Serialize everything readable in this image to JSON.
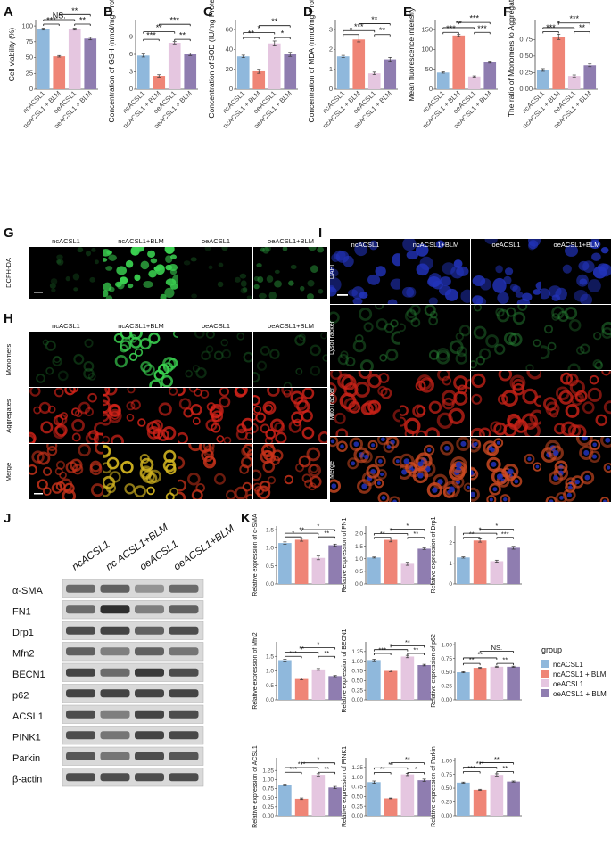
{
  "colors": {
    "nc": "#8fb8dc",
    "ncB": "#ef8576",
    "oe": "#e5c6e0",
    "oeB": "#8f7db0",
    "dapi": "#1a2a8a",
    "green": "#2bb040",
    "red": "#d8241a",
    "axis": "#444444"
  },
  "legend": {
    "title": "group",
    "entries": [
      "ncACSL1",
      "ncACSL1 + BLM",
      "oeACSL1",
      "oeACSL1 + BLM"
    ]
  },
  "chart_data": [
    {
      "panel": "A",
      "type": "bar",
      "categories": [
        "ncACSL1",
        "ncACSL1 + BLM",
        "oeACSL1",
        "oeACSL1 + BLM"
      ],
      "values": [
        95,
        52,
        95,
        80
      ],
      "errors": [
        1.5,
        1.2,
        1.5,
        2
      ],
      "ylabel": "Cell viability (%)",
      "ylim": [
        0,
        110
      ],
      "ticks": [
        "0",
        "25",
        "50",
        "75",
        "100"
      ],
      "tickvals": [
        0,
        25,
        50,
        75,
        100
      ],
      "sig": [
        {
          "a": 0,
          "b": 1,
          "y": 103,
          "label": "***"
        },
        {
          "a": 0,
          "b": 2,
          "y": 110,
          "label": "NS."
        },
        {
          "a": 1,
          "b": 3,
          "y": 118,
          "label": "**"
        },
        {
          "a": 2,
          "b": 3,
          "y": 103,
          "label": "**"
        }
      ]
    },
    {
      "panel": "B",
      "type": "bar",
      "categories": [
        "ncACSL1",
        "ncACSL1 + BLM",
        "oeACSL1",
        "oeACSL1 + BLM"
      ],
      "values": [
        5.8,
        2.3,
        8.0,
        6.0
      ],
      "errors": [
        0.25,
        0.2,
        0.2,
        0.2
      ],
      "ylabel": "Concentration of GSH (nmol/mg Protein)",
      "ylim": [
        0,
        12
      ],
      "ticks": [
        "0",
        "3",
        "6",
        "9"
      ],
      "tickvals": [
        0,
        3,
        6,
        9
      ],
      "sig": [
        {
          "a": 0,
          "b": 1,
          "y": 8.6,
          "label": "***"
        },
        {
          "a": 0,
          "b": 2,
          "y": 9.9,
          "label": "**"
        },
        {
          "a": 1,
          "b": 3,
          "y": 11.2,
          "label": "***"
        },
        {
          "a": 2,
          "b": 3,
          "y": 8.6,
          "label": "**"
        }
      ]
    },
    {
      "panel": "C",
      "type": "bar",
      "categories": [
        "ncACSL1",
        "ncACSL1 + BLM",
        "oeACSL1",
        "oeACSL1 + BLM"
      ],
      "values": [
        33,
        18,
        46,
        35
      ],
      "errors": [
        1.2,
        2,
        2.5,
        2
      ],
      "ylabel": "Concentration of SOD (IU/mg Protein)",
      "ylim": [
        0,
        70
      ],
      "ticks": [
        "0",
        "20",
        "40",
        "60"
      ],
      "tickvals": [
        0,
        20,
        40,
        60
      ],
      "sig": [
        {
          "a": 0,
          "b": 1,
          "y": 52,
          "label": "**"
        },
        {
          "a": 0,
          "b": 2,
          "y": 57,
          "label": "*"
        },
        {
          "a": 1,
          "b": 3,
          "y": 64,
          "label": "**"
        },
        {
          "a": 2,
          "b": 3,
          "y": 52,
          "label": "*"
        }
      ]
    },
    {
      "panel": "D",
      "type": "bar",
      "categories": [
        "ncACSL1",
        "ncACSL1 + BLM",
        "oeACSL1",
        "oeACSL1 + BLM"
      ],
      "values": [
        1.65,
        2.5,
        0.8,
        1.5
      ],
      "errors": [
        0.05,
        0.12,
        0.06,
        0.1
      ],
      "ylabel": "Concentration of MDA (nmol/mg Protein)",
      "ylim": [
        0,
        3.5
      ],
      "ticks": [
        "0",
        "1",
        "2",
        "3"
      ],
      "tickvals": [
        0,
        1,
        2,
        3
      ],
      "sig": [
        {
          "a": 0,
          "b": 1,
          "y": 2.75,
          "label": "*"
        },
        {
          "a": 0,
          "b": 2,
          "y": 2.95,
          "label": "***"
        },
        {
          "a": 1,
          "b": 3,
          "y": 3.3,
          "label": "**"
        },
        {
          "a": 2,
          "b": 3,
          "y": 2.75,
          "label": "**"
        }
      ]
    },
    {
      "panel": "E",
      "type": "bar",
      "categories": [
        "ncACSL1",
        "ncACSL1 + BLM",
        "oeACSL1",
        "oeACSL1 + BLM"
      ],
      "values": [
        42,
        135,
        32,
        68
      ],
      "errors": [
        1.5,
        2.5,
        1.5,
        2.5
      ],
      "ylabel": "Mean fluorescence intensity",
      "ylim": [
        0,
        175
      ],
      "ticks": [
        "0",
        "50",
        "100",
        "150"
      ],
      "tickvals": [
        0,
        50,
        100,
        150
      ],
      "sig": [
        {
          "a": 0,
          "b": 1,
          "y": 143,
          "label": "***"
        },
        {
          "a": 0,
          "b": 2,
          "y": 155,
          "label": "**"
        },
        {
          "a": 1,
          "b": 3,
          "y": 168,
          "label": "***"
        },
        {
          "a": 2,
          "b": 3,
          "y": 143,
          "label": "***"
        }
      ]
    },
    {
      "panel": "F",
      "type": "bar",
      "categories": [
        "ncACSL1",
        "ncACSL1 + BLM",
        "oeACSL1",
        "oeACSL1 + BLM"
      ],
      "values": [
        0.29,
        0.79,
        0.2,
        0.36
      ],
      "errors": [
        0.02,
        0.04,
        0.015,
        0.02
      ],
      "ylabel": "The ratio of Monomers to Aggregates",
      "ylim": [
        0,
        1.05
      ],
      "ticks": [
        "0.00",
        "0.25",
        "0.50",
        "0.75"
      ],
      "tickvals": [
        0,
        0.25,
        0.5,
        0.75
      ],
      "sig": [
        {
          "a": 0,
          "b": 1,
          "y": 0.87,
          "label": "***"
        },
        {
          "a": 0,
          "b": 2,
          "y": 0.93,
          "label": "*"
        },
        {
          "a": 1,
          "b": 3,
          "y": 1.0,
          "label": "***"
        },
        {
          "a": 2,
          "b": 3,
          "y": 0.87,
          "label": "**"
        }
      ]
    },
    {
      "panel": "K1",
      "type": "bar",
      "categories": [
        "ncACSL1",
        "ncACSL1 + BLM",
        "oeACSL1",
        "oeACSL1 + BLM"
      ],
      "values": [
        1.13,
        1.22,
        0.72,
        1.07
      ],
      "errors": [
        0.03,
        0.04,
        0.05,
        0.03
      ],
      "ylabel": "Relative expression of α-SMA",
      "ylim": [
        0,
        1.6
      ],
      "ticks": [
        "0.0",
        "0.5",
        "1.0",
        "1.5"
      ],
      "tickvals": [
        0,
        0.5,
        1,
        1.5
      ],
      "sig": [
        {
          "a": 0,
          "b": 1,
          "y": 1.3,
          "label": "*"
        },
        {
          "a": 0,
          "b": 2,
          "y": 1.4,
          "label": "**"
        },
        {
          "a": 1,
          "b": 3,
          "y": 1.5,
          "label": "*"
        },
        {
          "a": 2,
          "b": 3,
          "y": 1.3,
          "label": "**"
        }
      ]
    },
    {
      "panel": "K2",
      "type": "bar",
      "categories": [
        "ncACSL1",
        "ncACSL1 + BLM",
        "oeACSL1",
        "oeACSL1 + BLM"
      ],
      "values": [
        1.05,
        1.75,
        0.8,
        1.4
      ],
      "errors": [
        0.02,
        0.08,
        0.06,
        0.03
      ],
      "ylabel": "Relative expression of FN1",
      "ylim": [
        0,
        2.3
      ],
      "ticks": [
        "0.0",
        "0.5",
        "1.0",
        "1.5",
        "2.0"
      ],
      "tickvals": [
        0,
        0.5,
        1,
        1.5,
        2
      ],
      "sig": [
        {
          "a": 0,
          "b": 1,
          "y": 1.85,
          "label": "**"
        },
        {
          "a": 0,
          "b": 2,
          "y": 2.0,
          "label": "*"
        },
        {
          "a": 1,
          "b": 3,
          "y": 2.18,
          "label": "*"
        },
        {
          "a": 2,
          "b": 3,
          "y": 1.85,
          "label": "**"
        }
      ]
    },
    {
      "panel": "K3",
      "type": "bar",
      "categories": [
        "ncACSL1",
        "ncACSL1 + BLM",
        "oeACSL1",
        "oeACSL1 + BLM"
      ],
      "values": [
        1.28,
        2.1,
        1.1,
        1.75
      ],
      "errors": [
        0.03,
        0.08,
        0.05,
        0.07
      ],
      "ylabel": "Relative expression of Drp1",
      "ylim": [
        0,
        2.8
      ],
      "ticks": [
        "0",
        "1",
        "2"
      ],
      "tickvals": [
        0,
        1,
        2
      ],
      "sig": [
        {
          "a": 0,
          "b": 1,
          "y": 2.25,
          "label": "**"
        },
        {
          "a": 0,
          "b": 2,
          "y": 2.45,
          "label": "*"
        },
        {
          "a": 1,
          "b": 3,
          "y": 2.65,
          "label": "*"
        },
        {
          "a": 2,
          "b": 3,
          "y": 2.25,
          "label": "***"
        }
      ]
    },
    {
      "panel": "K4",
      "type": "bar",
      "categories": [
        "ncACSL1",
        "ncACSL1 + BLM",
        "oeACSL1",
        "oeACSL1 + BLM"
      ],
      "values": [
        1.37,
        0.72,
        1.05,
        0.82
      ],
      "errors": [
        0.03,
        0.03,
        0.03,
        0.02
      ],
      "ylabel": "Relative expression of Mfn2",
      "ylim": [
        0,
        2.0
      ],
      "ticks": [
        "0.0",
        "0.5",
        "1.0",
        "1.5"
      ],
      "tickvals": [
        0,
        0.5,
        1,
        1.5
      ],
      "sig": [
        {
          "a": 0,
          "b": 1,
          "y": 1.5,
          "label": "***"
        },
        {
          "a": 0,
          "b": 2,
          "y": 1.65,
          "label": "**"
        },
        {
          "a": 1,
          "b": 3,
          "y": 1.8,
          "label": "*"
        },
        {
          "a": 2,
          "b": 3,
          "y": 1.5,
          "label": "**"
        }
      ]
    },
    {
      "panel": "K5",
      "type": "bar",
      "categories": [
        "ncACSL1",
        "ncACSL1 + BLM",
        "oeACSL1",
        "oeACSL1 + BLM"
      ],
      "values": [
        1.03,
        0.75,
        1.12,
        0.9
      ],
      "errors": [
        0.02,
        0.02,
        0.03,
        0.02
      ],
      "ylabel": "Relative expression of BECN1",
      "ylim": [
        0,
        1.5
      ],
      "ticks": [
        "0.00",
        "0.25",
        "0.50",
        "0.75",
        "1.00",
        "1.25"
      ],
      "tickvals": [
        0,
        0.25,
        0.5,
        0.75,
        1,
        1.25
      ],
      "sig": [
        {
          "a": 0,
          "b": 1,
          "y": 1.2,
          "label": "***"
        },
        {
          "a": 0,
          "b": 2,
          "y": 1.3,
          "label": "*"
        },
        {
          "a": 1,
          "b": 3,
          "y": 1.4,
          "label": "**"
        },
        {
          "a": 2,
          "b": 3,
          "y": 1.2,
          "label": "**"
        }
      ]
    },
    {
      "panel": "K6",
      "type": "bar",
      "categories": [
        "ncACSL1",
        "ncACSL1 + BLM",
        "oeACSL1",
        "oeACSL1 + BLM"
      ],
      "values": [
        0.5,
        0.58,
        0.6,
        0.6
      ],
      "errors": [
        0.01,
        0.01,
        0.01,
        0.01
      ],
      "ylabel": "Relative expression of p62",
      "ylim": [
        0,
        1.05
      ],
      "ticks": [
        "0.00",
        "0.25",
        "0.50",
        "0.75",
        "1.00"
      ],
      "tickvals": [
        0,
        0.25,
        0.5,
        0.75,
        1
      ],
      "sig": [
        {
          "a": 0,
          "b": 1,
          "y": 0.66,
          "label": "**"
        },
        {
          "a": 0,
          "b": 2,
          "y": 0.76,
          "label": "**"
        },
        {
          "a": 1,
          "b": 3,
          "y": 0.88,
          "label": "NS."
        },
        {
          "a": 2,
          "b": 3,
          "y": 0.66,
          "label": "**"
        }
      ]
    },
    {
      "panel": "K7",
      "type": "bar",
      "categories": [
        "ncACSL1",
        "ncACSL1 + BLM",
        "oeACSL1",
        "oeACSL1 + BLM"
      ],
      "values": [
        0.85,
        0.47,
        1.13,
        0.78
      ],
      "errors": [
        0.02,
        0.02,
        0.03,
        0.03
      ],
      "ylabel": "Relative expression of ACSL1",
      "ylim": [
        0,
        1.6
      ],
      "ticks": [
        "0.00",
        "0.25",
        "0.50",
        "0.75",
        "1.00",
        "1.25"
      ],
      "tickvals": [
        0,
        0.25,
        0.5,
        0.75,
        1,
        1.25
      ],
      "sig": [
        {
          "a": 0,
          "b": 1,
          "y": 1.2,
          "label": "***"
        },
        {
          "a": 0,
          "b": 2,
          "y": 1.33,
          "label": "***"
        },
        {
          "a": 1,
          "b": 3,
          "y": 1.46,
          "label": "*"
        },
        {
          "a": 2,
          "b": 3,
          "y": 1.2,
          "label": "**"
        }
      ]
    },
    {
      "panel": "K8",
      "type": "bar",
      "categories": [
        "ncACSL1",
        "ncACSL1 + BLM",
        "oeACSL1",
        "oeACSL1 + BLM"
      ],
      "values": [
        0.87,
        0.45,
        1.07,
        0.92
      ],
      "errors": [
        0.03,
        0.01,
        0.03,
        0.03
      ],
      "ylabel": "Relative expression of PINK1",
      "ylim": [
        0,
        1.5
      ],
      "ticks": [
        "0.00",
        "0.25",
        "0.50",
        "0.75",
        "1.00",
        "1.25"
      ],
      "tickvals": [
        0,
        0.25,
        0.5,
        0.75,
        1,
        1.25
      ],
      "sig": [
        {
          "a": 0,
          "b": 1,
          "y": 1.12,
          "label": "**"
        },
        {
          "a": 0,
          "b": 2,
          "y": 1.24,
          "label": "**"
        },
        {
          "a": 1,
          "b": 3,
          "y": 1.37,
          "label": "**"
        },
        {
          "a": 2,
          "b": 3,
          "y": 1.12,
          "label": "*"
        }
      ]
    },
    {
      "panel": "K9",
      "type": "bar",
      "categories": [
        "ncACSL1",
        "ncACSL1 + BLM",
        "oeACSL1",
        "oeACSL1 + BLM"
      ],
      "values": [
        0.6,
        0.47,
        0.74,
        0.62
      ],
      "errors": [
        0.01,
        0.01,
        0.02,
        0.01
      ],
      "ylabel": "Relative expression of Parkin",
      "ylim": [
        0,
        1.05
      ],
      "ticks": [
        "0.00",
        "0.25",
        "0.50",
        "0.75",
        "1.00"
      ],
      "tickvals": [
        0,
        0.25,
        0.5,
        0.75,
        1
      ],
      "sig": [
        {
          "a": 0,
          "b": 1,
          "y": 0.8,
          "label": "***"
        },
        {
          "a": 0,
          "b": 2,
          "y": 0.88,
          "label": "***"
        },
        {
          "a": 1,
          "b": 3,
          "y": 0.96,
          "label": "**"
        },
        {
          "a": 2,
          "b": 3,
          "y": 0.8,
          "label": "**"
        }
      ]
    }
  ],
  "panel_letters": [
    "A",
    "B",
    "C",
    "D",
    "E",
    "F",
    "G",
    "H",
    "I",
    "J",
    "K"
  ],
  "panel_G": {
    "columns": [
      "ncACSL1",
      "ncACSL1+BLM",
      "oeACSL1",
      "oeACSL1+BLM"
    ],
    "rows": [
      "DCFH-DA"
    ]
  },
  "panel_H": {
    "columns": [
      "ncACSL1",
      "ncACSL1+BLM",
      "oeACSL1",
      "oeACSL1+BLM"
    ],
    "rows": [
      "Monomers",
      "Aggregates",
      "Merge"
    ]
  },
  "panel_I": {
    "columns": [
      "ncACSL1",
      "ncACSL1+BLM",
      "oeACSL1",
      "oeACSL1+BLM"
    ],
    "rows": [
      "DAPI",
      "LysoTracker",
      "MitoTracker",
      "Merge"
    ]
  },
  "panel_J": {
    "columns": [
      "ncACSL1",
      "nc ACSL1+BLM",
      "oeACSL1",
      "oeACSL1+BLM"
    ],
    "proteins": [
      "α-SMA",
      "FN1",
      "Drp1",
      "Mfn2",
      "BECN1",
      "p62",
      "ACSL1",
      "PINK1",
      "Parkin",
      "β-actin"
    ],
    "band_intensity": [
      [
        0.55,
        0.6,
        0.35,
        0.55
      ],
      [
        0.55,
        0.85,
        0.45,
        0.6
      ],
      [
        0.7,
        0.75,
        0.6,
        0.7
      ],
      [
        0.6,
        0.45,
        0.6,
        0.5
      ],
      [
        0.75,
        0.55,
        0.8,
        0.7
      ],
      [
        0.75,
        0.75,
        0.75,
        0.75
      ],
      [
        0.7,
        0.45,
        0.75,
        0.7
      ],
      [
        0.7,
        0.5,
        0.75,
        0.72
      ],
      [
        0.65,
        0.5,
        0.7,
        0.65
      ],
      [
        0.7,
        0.7,
        0.7,
        0.7
      ]
    ]
  }
}
